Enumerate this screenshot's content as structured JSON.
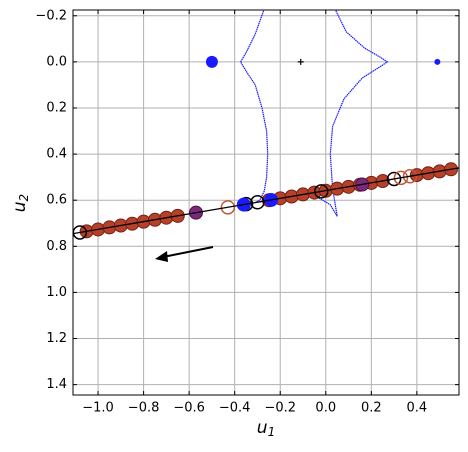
{
  "chart_data": {
    "type": "scatter",
    "xlabel": {
      "text": "u",
      "sub": "1"
    },
    "ylabel": {
      "text": "u",
      "sub": "2"
    },
    "xlim": [
      -1.11,
      0.585
    ],
    "ylim": [
      1.445,
      -0.225
    ],
    "grid": true,
    "xticks": [
      {
        "value": -1.0,
        "label": "−1.0"
      },
      {
        "value": -0.8,
        "label": "−0.8"
      },
      {
        "value": -0.6,
        "label": "−0.6"
      },
      {
        "value": -0.4,
        "label": "−0.4"
      },
      {
        "value": -0.2,
        "label": "−0.2"
      },
      {
        "value": 0,
        "label": "0.0"
      },
      0.2,
      0.4
    ],
    "yticks": [
      {
        "value": -0.2,
        "label": "−0.2"
      },
      {
        "value": 0,
        "label": "0.0"
      },
      0.2,
      0.4,
      0.6,
      0.8,
      {
        "value": 1.0,
        "label": "1.0"
      },
      1.2,
      1.4
    ],
    "caustics": [
      {
        "color": "#1a1aff",
        "x": [
          -0.27,
          -0.31,
          -0.35,
          -0.374,
          -0.35,
          -0.31,
          -0.28,
          -0.26,
          -0.255,
          -0.26,
          -0.27,
          -0.29,
          -0.31
        ],
        "y": [
          -0.23,
          -0.12,
          -0.04,
          0,
          0.04,
          0.1,
          0.2,
          0.3,
          0.4,
          0.5,
          0.56,
          0.6,
          0.61
        ]
      },
      {
        "color": "#1a1aff",
        "x": [
          0.04,
          0.09,
          0.17,
          0.24,
          0.27,
          0.24,
          0.16,
          0.08,
          0.03,
          0.02,
          0.03,
          0.05,
          null,
          0.05,
          0.02,
          -0.03,
          -0.1,
          -0.2,
          -0.27
        ],
        "y": [
          -0.23,
          -0.13,
          -0.06,
          -0.02,
          0,
          0.02,
          0.07,
          0.16,
          0.28,
          0.4,
          0.55,
          0.67,
          null,
          0.67,
          0.62,
          0.59,
          0.58,
          0.59,
          0.6
        ]
      }
    ],
    "trajectory": {
      "color": "#000000",
      "x": [
        -1.11,
        0.585
      ],
      "y": [
        0.745,
        0.46
      ]
    },
    "series": [
      {
        "color": "#b5412b",
        "edge": "#7a1f12",
        "hollow": false,
        "x": [
          -1.05,
          -1.0,
          -0.95,
          -0.9,
          -0.85,
          -0.8,
          -0.75,
          -0.7,
          -0.65,
          -0.25,
          -0.2,
          -0.15,
          -0.1,
          -0.05,
          0.0,
          0.05,
          0.1,
          0.15,
          0.2,
          0.25,
          0.4,
          0.45,
          0.5,
          0.55
        ],
        "y": [
          0.735,
          0.727,
          0.718,
          0.71,
          0.702,
          0.693,
          0.685,
          0.676,
          0.668,
          0.6,
          0.592,
          0.584,
          0.575,
          0.567,
          0.559,
          0.55,
          0.542,
          0.533,
          0.525,
          0.517,
          0.491,
          0.483,
          0.475,
          0.466
        ]
      },
      {
        "color": "#000000",
        "edge": "#000000",
        "hollow": true,
        "x": [
          -1.08,
          -0.35,
          -0.3,
          -0.02,
          0.3
        ],
        "y": [
          0.74,
          0.617,
          0.609,
          0.562,
          0.508
        ]
      },
      {
        "color": "#7b2a7a",
        "edge": "#4a104a",
        "hollow": false,
        "x": [
          -0.57,
          0.16
        ],
        "y": [
          0.654,
          0.532
        ]
      },
      {
        "color": "#c05a3a",
        "edge": "#c05a3a",
        "hollow": true,
        "x": [
          -0.43,
          0.33,
          0.37
        ],
        "y": [
          0.631,
          0.503,
          0.496
        ]
      },
      {
        "color": "#1a1aff",
        "edge": "#1a1aff",
        "hollow": false,
        "x": [
          -0.36,
          -0.24
        ],
        "y": [
          0.619,
          0.599
        ]
      }
    ],
    "lenses": {
      "color": "#1a1aff",
      "x": [
        -0.5,
        0.49
      ],
      "y": [
        0,
        0
      ],
      "size": [
        6,
        3
      ]
    },
    "center": {
      "x": -0.11,
      "y": 0
    }
  }
}
